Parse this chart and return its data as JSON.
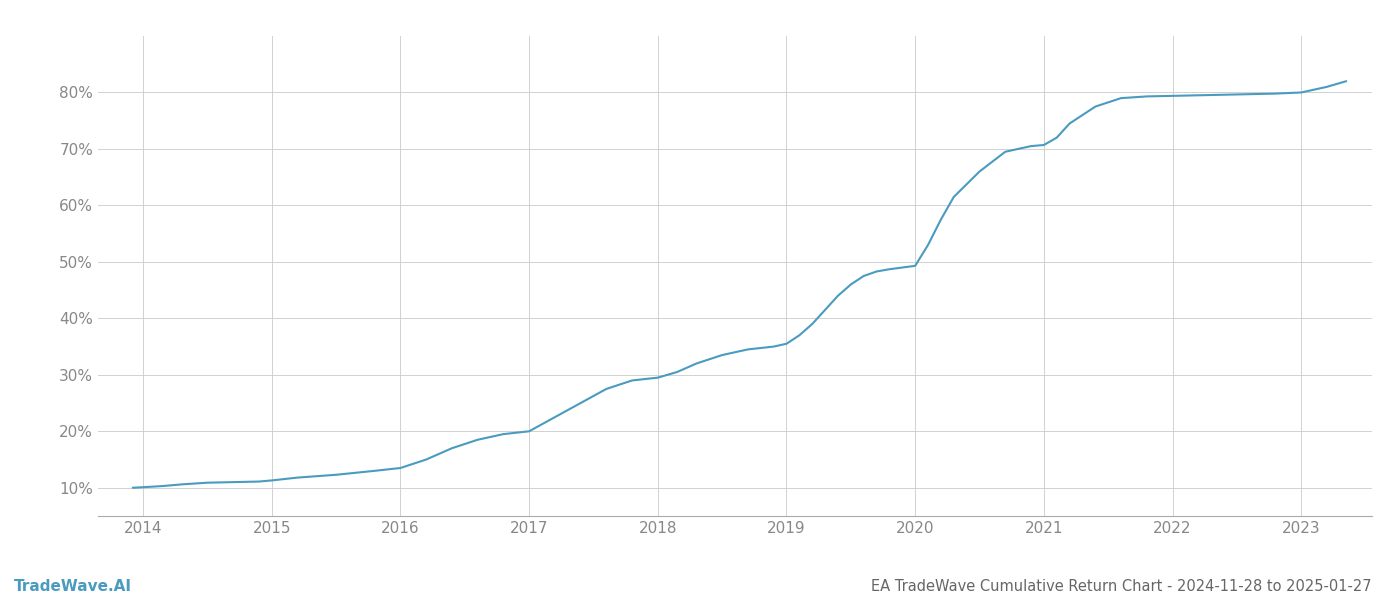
{
  "title": "EA TradeWave Cumulative Return Chart - 2024-11-28 to 2025-01-27",
  "watermark": "TradeWave.AI",
  "line_color": "#4a9bbf",
  "background_color": "#ffffff",
  "grid_color": "#cccccc",
  "x_years": [
    2014,
    2015,
    2016,
    2017,
    2018,
    2019,
    2020,
    2021,
    2022,
    2023
  ],
  "x_values": [
    2013.92,
    2014.0,
    2014.15,
    2014.3,
    2014.5,
    2014.7,
    2014.9,
    2015.0,
    2015.2,
    2015.5,
    2015.8,
    2016.0,
    2016.2,
    2016.4,
    2016.6,
    2016.8,
    2017.0,
    2017.2,
    2017.4,
    2017.6,
    2017.8,
    2018.0,
    2018.15,
    2018.3,
    2018.5,
    2018.7,
    2018.9,
    2019.0,
    2019.1,
    2019.2,
    2019.3,
    2019.4,
    2019.5,
    2019.6,
    2019.7,
    2019.8,
    2019.9,
    2020.0,
    2020.1,
    2020.2,
    2020.3,
    2020.5,
    2020.7,
    2020.9,
    2021.0,
    2021.1,
    2021.2,
    2021.4,
    2021.6,
    2021.8,
    2022.0,
    2022.2,
    2022.4,
    2022.6,
    2022.8,
    2023.0,
    2023.2,
    2023.35
  ],
  "y_values": [
    10.0,
    10.1,
    10.3,
    10.6,
    10.9,
    11.0,
    11.1,
    11.3,
    11.8,
    12.3,
    13.0,
    13.5,
    15.0,
    17.0,
    18.5,
    19.5,
    20.0,
    22.5,
    25.0,
    27.5,
    29.0,
    29.5,
    30.5,
    32.0,
    33.5,
    34.5,
    35.0,
    35.5,
    37.0,
    39.0,
    41.5,
    44.0,
    46.0,
    47.5,
    48.3,
    48.7,
    49.0,
    49.3,
    53.0,
    57.5,
    61.5,
    66.0,
    69.5,
    70.5,
    70.7,
    72.0,
    74.5,
    77.5,
    79.0,
    79.3,
    79.4,
    79.5,
    79.6,
    79.7,
    79.8,
    80.0,
    81.0,
    82.0
  ],
  "ylim": [
    5,
    90
  ],
  "yticks": [
    10,
    20,
    30,
    40,
    50,
    60,
    70,
    80
  ],
  "xlim": [
    2013.65,
    2023.55
  ],
  "title_fontsize": 10.5,
  "watermark_fontsize": 11,
  "tick_fontsize": 11,
  "tick_color": "#888888",
  "title_color": "#666666"
}
